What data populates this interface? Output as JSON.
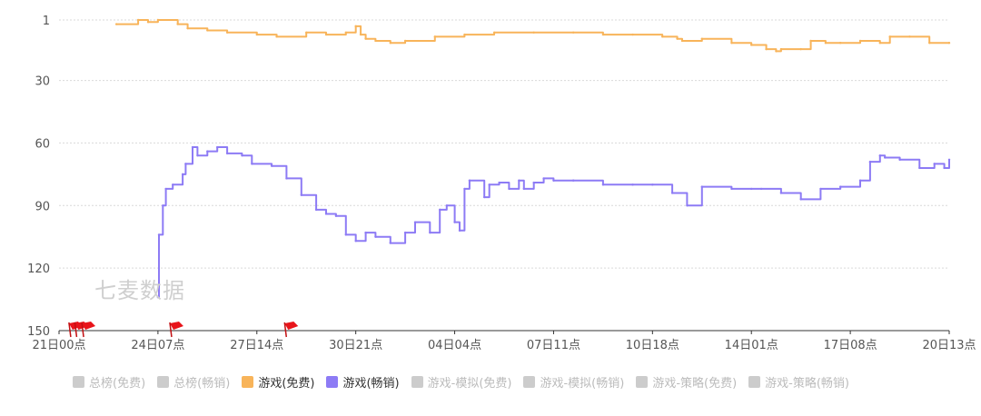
{
  "watermark": "七麦数据",
  "legend": [
    {
      "label": "总榜(免费)",
      "color": "#cccccc",
      "active": false
    },
    {
      "label": "总榜(畅销)",
      "color": "#cccccc",
      "active": false
    },
    {
      "label": "游戏(免费)",
      "color": "#f8b45a",
      "active": true
    },
    {
      "label": "游戏(畅销)",
      "color": "#8d7bf5",
      "active": true
    },
    {
      "label": "游戏-模拟(免费)",
      "color": "#cccccc",
      "active": false
    },
    {
      "label": "游戏-模拟(畅销)",
      "color": "#cccccc",
      "active": false
    },
    {
      "label": "游戏-策略(免费)",
      "color": "#cccccc",
      "active": false
    },
    {
      "label": "游戏-策略(畅销)",
      "color": "#cccccc",
      "active": false
    }
  ],
  "chart_data": {
    "type": "line",
    "title": "",
    "xlabel": "",
    "ylabel": "",
    "y_inverted": true,
    "ylim": [
      1,
      150
    ],
    "y_ticks": [
      1,
      30,
      60,
      90,
      120,
      150
    ],
    "x_ticks": [
      "21日00点",
      "24日07点",
      "27日14点",
      "30日21点",
      "04日04点",
      "07日11点",
      "10日18点",
      "14日01点",
      "17日08点",
      "20日13点"
    ],
    "x_range": [
      0,
      9
    ],
    "grid": "horizontal dashed",
    "flag_positions": [
      0.1,
      0.16,
      0.23,
      1.12,
      2.28
    ],
    "series": [
      {
        "name": "游戏(免费)",
        "color": "#f8b45a",
        "x": [
          0.58,
          0.8,
          0.9,
          1.0,
          1.2,
          1.3,
          1.5,
          1.7,
          2.0,
          2.2,
          2.5,
          2.7,
          2.9,
          3.0,
          3.05,
          3.1,
          3.2,
          3.35,
          3.5,
          3.8,
          4.1,
          4.4,
          4.8,
          5.2,
          5.5,
          5.8,
          6.1,
          6.25,
          6.3,
          6.5,
          6.8,
          7.0,
          7.15,
          7.25,
          7.3,
          7.5,
          7.6,
          7.75,
          7.9,
          8.1,
          8.3,
          8.4,
          8.6,
          8.8,
          9.0
        ],
        "values": [
          3,
          1,
          2,
          1,
          3,
          5,
          6,
          7,
          8,
          9,
          7,
          8,
          7,
          4,
          8,
          10,
          11,
          12,
          11,
          9,
          8,
          7,
          7,
          7,
          8,
          8,
          9,
          10,
          11,
          10,
          12,
          13,
          15,
          16,
          15,
          15,
          11,
          12,
          12,
          11,
          12,
          9,
          9,
          12,
          12
        ]
      },
      {
        "name": "游戏(畅销)",
        "color": "#8d7bf5",
        "x": [
          1.0,
          1.01,
          1.05,
          1.08,
          1.15,
          1.25,
          1.28,
          1.35,
          1.4,
          1.5,
          1.6,
          1.7,
          1.85,
          1.95,
          2.15,
          2.3,
          2.45,
          2.6,
          2.7,
          2.8,
          2.9,
          3.0,
          3.1,
          3.2,
          3.35,
          3.5,
          3.6,
          3.75,
          3.85,
          3.92,
          4.0,
          4.05,
          4.1,
          4.15,
          4.3,
          4.35,
          4.45,
          4.55,
          4.65,
          4.7,
          4.8,
          4.9,
          5.0,
          5.2,
          5.5,
          5.8,
          6.0,
          6.2,
          6.35,
          6.5,
          6.8,
          7.0,
          7.1,
          7.3,
          7.5,
          7.7,
          7.9,
          8.1,
          8.2,
          8.3,
          8.35,
          8.5,
          8.7,
          8.85,
          8.95,
          9.0
        ],
        "values": [
          134,
          104,
          90,
          82,
          80,
          75,
          70,
          62,
          66,
          64,
          62,
          65,
          66,
          70,
          71,
          77,
          85,
          92,
          94,
          95,
          104,
          107,
          103,
          105,
          108,
          103,
          98,
          103,
          92,
          90,
          98,
          102,
          82,
          78,
          86,
          80,
          79,
          82,
          78,
          82,
          79,
          77,
          78,
          78,
          80,
          80,
          80,
          84,
          90,
          81,
          82,
          82,
          82,
          84,
          87,
          82,
          81,
          78,
          69,
          66,
          67,
          68,
          72,
          70,
          72,
          68
        ]
      }
    ]
  }
}
